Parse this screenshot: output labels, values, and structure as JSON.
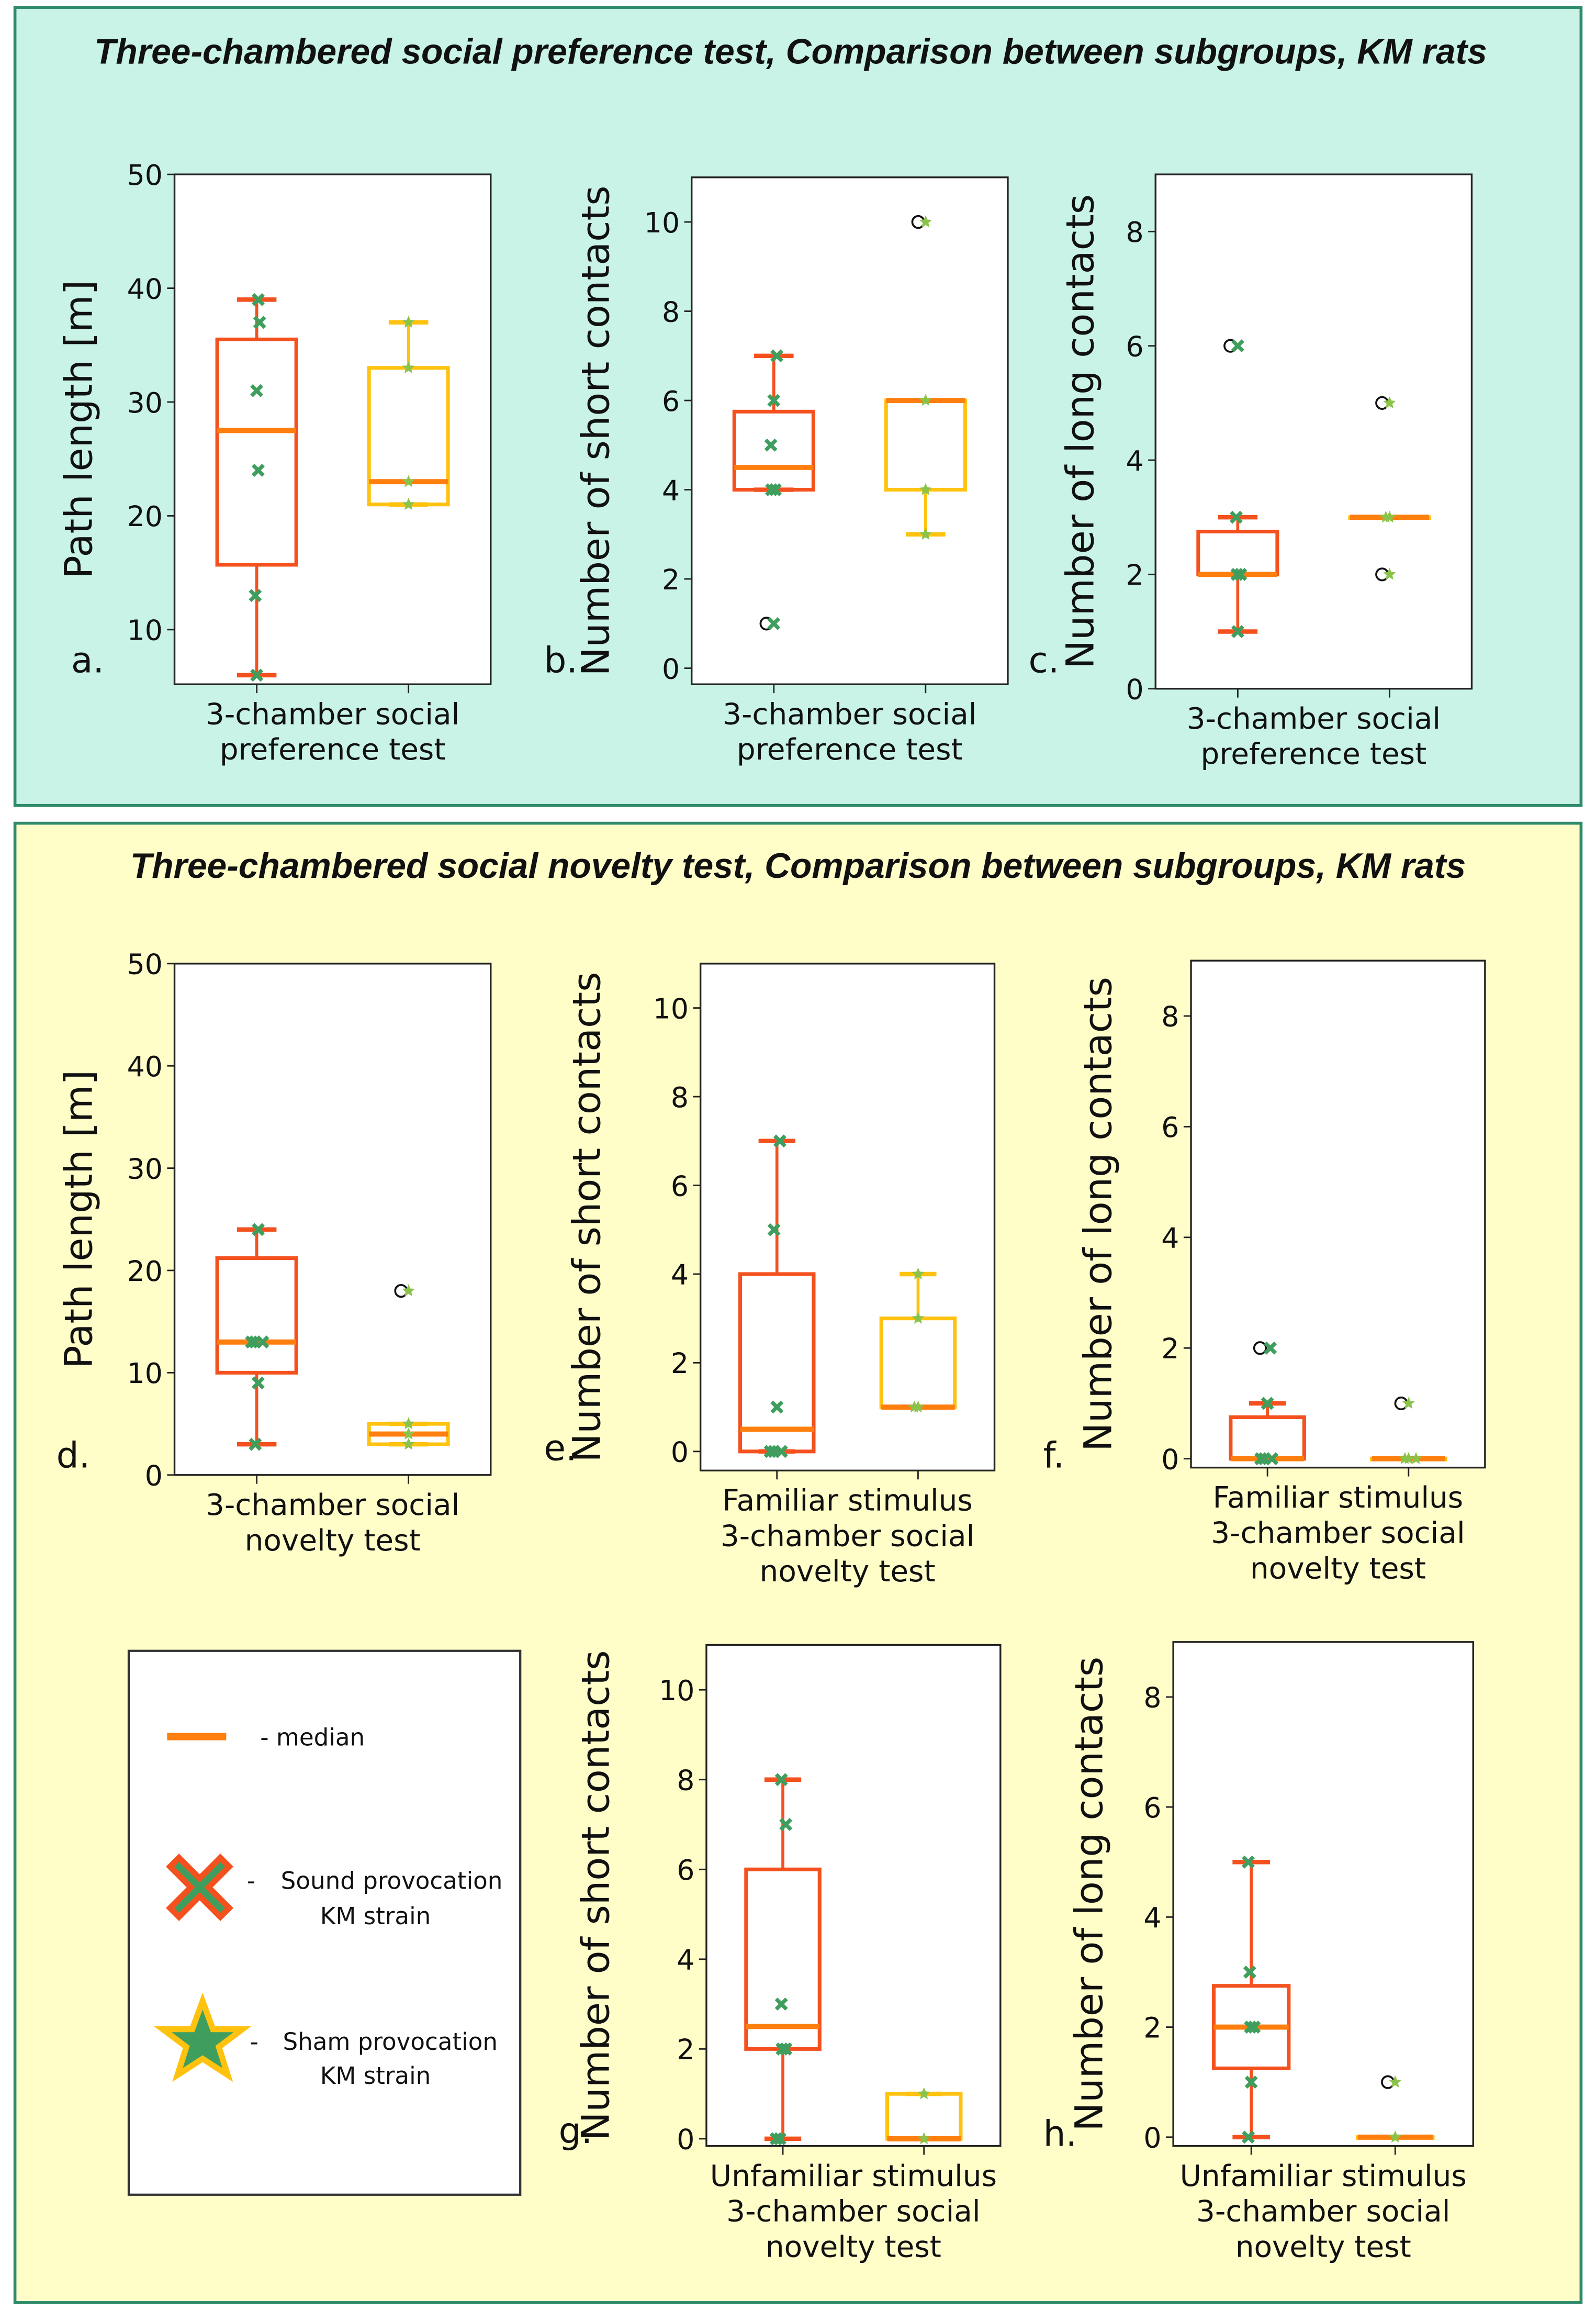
{
  "panels": {
    "top": {
      "title": "Three-chambered social preference test, Comparison  between subgroups, KM rats",
      "bg": "#c8f3e6",
      "border": "#2e8b6a"
    },
    "bottom": {
      "title": "Three-chambered social novelty test, Comparison between subgroups, KM rats",
      "bg": "#fffdc8",
      "border": "#2e8b6a"
    }
  },
  "colors": {
    "sound_box": "#f4511e",
    "sham_box": "#ffc20e",
    "median": "#ff7f0e",
    "sound_point": "#3f9e5e",
    "sham_point": "#8bc34a"
  },
  "legend": {
    "median": "- median",
    "dash1": "-",
    "sound": "Sound provocation",
    "sound2": "KM strain",
    "dash2": "-",
    "sham": "Sham provocation",
    "sham2": "KM strain"
  },
  "chart_data": [
    {
      "type": "box",
      "letter": "a.",
      "ylabel": "Path length [m]",
      "xlabel": [
        "3-chamber social",
        "preference test"
      ],
      "ylim": [
        5.2,
        50
      ],
      "yticks": [
        10,
        20,
        30,
        40,
        50
      ],
      "series": [
        {
          "name": "Sound provocation KM strain",
          "whislo": 6,
          "q1": 15.7,
          "med": 27.5,
          "q3": 35.5,
          "whishi": 39,
          "fliers": [],
          "points": [
            39,
            37,
            31,
            24,
            13,
            6
          ]
        },
        {
          "name": "Sham provocation KM strain",
          "whislo": 21,
          "q1": 21,
          "med": 23,
          "q3": 33,
          "whishi": 37,
          "fliers": [],
          "points": [
            37,
            33,
            23,
            21
          ]
        }
      ]
    },
    {
      "type": "box",
      "letter": "b.",
      "ylabel": "Number of short contacts",
      "xlabel": [
        "3-chamber social",
        "preference test"
      ],
      "ylim": [
        -0.36,
        11
      ],
      "yticks": [
        0,
        2,
        4,
        6,
        8,
        10
      ],
      "series": [
        {
          "name": "Sound provocation KM strain",
          "whislo": 4,
          "q1": 4,
          "med": 4.5,
          "q3": 5.75,
          "whishi": 7,
          "fliers": [
            1
          ],
          "points": [
            7,
            6,
            5,
            4,
            4,
            1
          ]
        },
        {
          "name": "Sham provocation KM strain",
          "whislo": 3,
          "q1": 4,
          "med": 6,
          "q3": 6,
          "whishi": 6,
          "fliers": [
            10
          ],
          "points": [
            10,
            6,
            4,
            3
          ]
        }
      ]
    },
    {
      "type": "box",
      "letter": "c.",
      "ylabel": "Number of long contacts",
      "xlabel": [
        "3-chamber social",
        "preference test"
      ],
      "ylim": [
        0,
        9
      ],
      "yticks": [
        0,
        2,
        4,
        6,
        8
      ],
      "series": [
        {
          "name": "Sound provocation KM strain",
          "whislo": 1,
          "q1": 2,
          "med": 2,
          "q3": 2.75,
          "whishi": 3,
          "fliers": [
            6
          ],
          "points": [
            6,
            3,
            2,
            2,
            1
          ]
        },
        {
          "name": "Sham provocation KM strain",
          "whislo": 3,
          "q1": 3,
          "med": 3,
          "q3": 3,
          "whishi": 3,
          "fliers": [
            5,
            2
          ],
          "points": [
            5,
            3,
            3,
            2
          ]
        }
      ]
    },
    {
      "type": "box",
      "letter": "d.",
      "ylabel": "Path length [m]",
      "xlabel": [
        "3-chamber social",
        "novelty test"
      ],
      "ylim": [
        0,
        50
      ],
      "yticks": [
        0,
        10,
        20,
        30,
        40,
        50
      ],
      "series": [
        {
          "name": "Sound provocation KM strain",
          "whislo": 3,
          "q1": 10,
          "med": 13,
          "q3": 21.2,
          "whishi": 24,
          "fliers": [],
          "points": [
            24,
            13,
            13,
            13,
            9,
            3
          ]
        },
        {
          "name": "Sham provocation KM strain",
          "whislo": 3,
          "q1": 3,
          "med": 4,
          "q3": 5,
          "whishi": 5,
          "fliers": [
            18
          ],
          "points": [
            18,
            5,
            4,
            3
          ]
        }
      ]
    },
    {
      "type": "box",
      "letter": "e.",
      "ylabel": "Number of short contacts",
      "xlabel": [
        "Familiar stimulus",
        "3-chamber social",
        "novelty test"
      ],
      "ylim": [
        -0.43,
        11
      ],
      "yticks": [
        0,
        2,
        4,
        6,
        8,
        10
      ],
      "series": [
        {
          "name": "Sound provocation KM strain",
          "whislo": 0,
          "q1": 0,
          "med": 0.5,
          "q3": 4,
          "whishi": 7,
          "fliers": [],
          "points": [
            7,
            5,
            1,
            0,
            0,
            0
          ]
        },
        {
          "name": "Sham provocation KM strain",
          "whislo": 1,
          "q1": 1,
          "med": 1,
          "q3": 3,
          "whishi": 4,
          "fliers": [],
          "points": [
            4,
            3,
            1,
            1
          ]
        }
      ]
    },
    {
      "type": "box",
      "letter": "f.",
      "ylabel": "Number of long contacts",
      "xlabel": [
        "Familiar stimulus",
        "3-chamber social",
        "novelty test"
      ],
      "ylim": [
        -0.16,
        9
      ],
      "yticks": [
        0,
        2,
        4,
        6,
        8
      ],
      "series": [
        {
          "name": "Sound provocation KM strain",
          "whislo": 0,
          "q1": 0,
          "med": 0,
          "q3": 0.75,
          "whishi": 1,
          "fliers": [
            2
          ],
          "points": [
            2,
            1,
            0,
            0,
            0
          ]
        },
        {
          "name": "Sham provocation KM strain",
          "whislo": 0,
          "q1": 0,
          "med": 0,
          "q3": 0,
          "whishi": 0,
          "fliers": [
            1
          ],
          "points": [
            1,
            0,
            0,
            0
          ]
        }
      ]
    },
    {
      "type": "box",
      "letter": "g.",
      "ylabel": "Number of short contacts",
      "xlabel": [
        "Unfamiliar stimulus",
        "3-chamber social",
        "novelty test"
      ],
      "ylim": [
        -0.16,
        11
      ],
      "yticks": [
        0,
        2,
        4,
        6,
        8,
        10
      ],
      "series": [
        {
          "name": "Sound provocation KM strain",
          "whislo": 0,
          "q1": 2,
          "med": 2.5,
          "q3": 6,
          "whishi": 8,
          "fliers": [],
          "points": [
            8,
            7,
            3,
            2,
            2,
            0,
            0
          ]
        },
        {
          "name": "Sham provocation KM strain",
          "whislo": 0,
          "q1": 0,
          "med": 0,
          "q3": 1,
          "whishi": 1,
          "fliers": [],
          "points": [
            1,
            0
          ]
        }
      ]
    },
    {
      "type": "box",
      "letter": "h.",
      "ylabel": "Number of long contacts",
      "xlabel": [
        "Unfamiliar stimulus",
        "3-chamber social",
        "novelty test"
      ],
      "ylim": [
        -0.16,
        9
      ],
      "yticks": [
        0,
        2,
        4,
        6,
        8
      ],
      "series": [
        {
          "name": "Sound provocation KM strain",
          "whislo": 0,
          "q1": 1.25,
          "med": 2,
          "q3": 2.75,
          "whishi": 5,
          "fliers": [],
          "points": [
            5,
            3,
            2,
            2,
            1,
            0
          ]
        },
        {
          "name": "Sham provocation KM strain",
          "whislo": 0,
          "q1": 0,
          "med": 0,
          "q3": 0,
          "whishi": 0,
          "fliers": [
            1
          ],
          "points": [
            1,
            0
          ]
        }
      ]
    }
  ]
}
